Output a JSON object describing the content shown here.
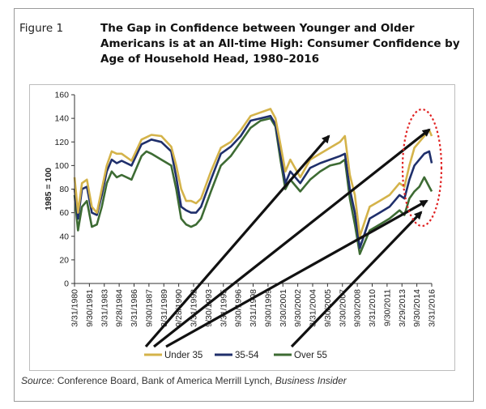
{
  "figure": {
    "label": "Figure 1",
    "title": "The Gap in Confidence between Younger and Older Americans is at an All-time High: Consumer Confidence by Age of Household Head, 1980–2016",
    "source_prefix": "Source:",
    "source_text": " Conference Board, Bank of America Merrill Lynch, ",
    "source_italic": "Business Insider"
  },
  "chart_data": {
    "type": "line",
    "ylabel": "1985 = 100",
    "ylim": [
      0,
      160
    ],
    "yticks": [
      0,
      20,
      40,
      60,
      80,
      100,
      120,
      140,
      160
    ],
    "xlim": [
      1980.25,
      2016.25
    ],
    "xtick_labels": [
      "3/31/1980",
      "9/30/1981",
      "3/31/1983",
      "9/28/1984",
      "3/31/1986",
      "9/30/1987",
      "3/31/1989",
      "9/28/1990",
      "3/31/1992",
      "9/30/1993",
      "3/31/1995",
      "9/30/1996",
      "3/31/1998",
      "9/30/1999",
      "3/30/2001",
      "9/30/2002",
      "3/31/2004",
      "9/30/2005",
      "3/30/2007",
      "9/30/2008",
      "3/31/2010",
      "9/30/2011",
      "3/29/2013",
      "9/30/2014",
      "3/31/2016"
    ],
    "colors": {
      "under35": "#d4b34a",
      "mid": "#1f2f6b",
      "over55": "#3d6b33",
      "arrow": "#111111",
      "ellipse": "#e02020"
    },
    "series": [
      {
        "name": "Under 35",
        "color": "#d4b34a",
        "x": [
          1980.25,
          1980.6,
          1981,
          1981.5,
          1982,
          1982.5,
          1983,
          1983.5,
          1984,
          1984.5,
          1985,
          1986,
          1987,
          1987.5,
          1988,
          1989,
          1990,
          1990.5,
          1991,
          1991.5,
          1992,
          1992.5,
          1993,
          1994,
          1995,
          1996,
          1997,
          1998,
          1999,
          2000,
          2000.5,
          2001,
          2001.5,
          2002,
          2003,
          2004,
          2005,
          2006,
          2007,
          2007.5,
          2008,
          2008.5,
          2009,
          2010,
          2011,
          2012,
          2013,
          2013.5,
          2014,
          2014.5,
          2015,
          2015.5,
          2016,
          2016.25
        ],
        "y": [
          90,
          60,
          85,
          88,
          65,
          60,
          80,
          100,
          112,
          110,
          110,
          104,
          122,
          124,
          126,
          125,
          116,
          100,
          80,
          70,
          70,
          68,
          72,
          95,
          115,
          120,
          130,
          142,
          145,
          148,
          140,
          118,
          95,
          105,
          90,
          105,
          110,
          115,
          120,
          125,
          92,
          75,
          40,
          65,
          70,
          75,
          85,
          82,
          100,
          115,
          120,
          125,
          130,
          125
        ]
      },
      {
        "name": "35-54",
        "color": "#1f2f6b",
        "x": [
          1980.25,
          1980.6,
          1981,
          1981.5,
          1982,
          1982.5,
          1983,
          1983.5,
          1984,
          1984.5,
          1985,
          1986,
          1987,
          1987.5,
          1988,
          1989,
          1990,
          1990.5,
          1991,
          1991.5,
          1992,
          1992.5,
          1993,
          1994,
          1995,
          1996,
          1997,
          1998,
          1999,
          2000,
          2000.5,
          2001,
          2001.5,
          2002,
          2003,
          2004,
          2005,
          2006,
          2007,
          2007.5,
          2008,
          2008.5,
          2009,
          2010,
          2011,
          2012,
          2013,
          2013.5,
          2014,
          2014.5,
          2015,
          2015.5,
          2016,
          2016.25
        ],
        "y": [
          80,
          55,
          80,
          82,
          60,
          58,
          75,
          95,
          105,
          102,
          104,
          100,
          118,
          120,
          122,
          120,
          112,
          90,
          65,
          62,
          60,
          60,
          65,
          88,
          110,
          116,
          125,
          138,
          140,
          142,
          135,
          110,
          85,
          95,
          85,
          98,
          102,
          105,
          108,
          110,
          80,
          60,
          30,
          55,
          60,
          65,
          75,
          72,
          88,
          100,
          105,
          110,
          112,
          102
        ]
      },
      {
        "name": "Over 55",
        "color": "#3d6b33",
        "x": [
          1980.25,
          1980.6,
          1981,
          1981.5,
          1982,
          1982.5,
          1983,
          1983.5,
          1984,
          1984.5,
          1985,
          1986,
          1987,
          1987.5,
          1988,
          1989,
          1990,
          1990.5,
          1991,
          1991.5,
          1992,
          1992.5,
          1993,
          1994,
          1995,
          1996,
          1997,
          1998,
          1999,
          2000,
          2000.5,
          2001,
          2001.5,
          2002,
          2003,
          2004,
          2005,
          2006,
          2007,
          2007.5,
          2008,
          2008.5,
          2009,
          2010,
          2011,
          2012,
          2013,
          2013.5,
          2014,
          2014.5,
          2015,
          2015.5,
          2016,
          2016.25
        ],
        "y": [
          75,
          45,
          65,
          70,
          48,
          50,
          65,
          85,
          95,
          90,
          92,
          88,
          108,
          112,
          110,
          105,
          100,
          80,
          55,
          50,
          48,
          50,
          55,
          78,
          100,
          108,
          120,
          132,
          138,
          140,
          133,
          105,
          80,
          88,
          78,
          88,
          95,
          100,
          102,
          105,
          72,
          50,
          25,
          45,
          50,
          55,
          62,
          58,
          72,
          78,
          82,
          90,
          82,
          78
        ]
      }
    ],
    "annotations": "Four black arrows converge from the lower-left; a red dotted ellipse highlights the widening gap at the right edge"
  }
}
